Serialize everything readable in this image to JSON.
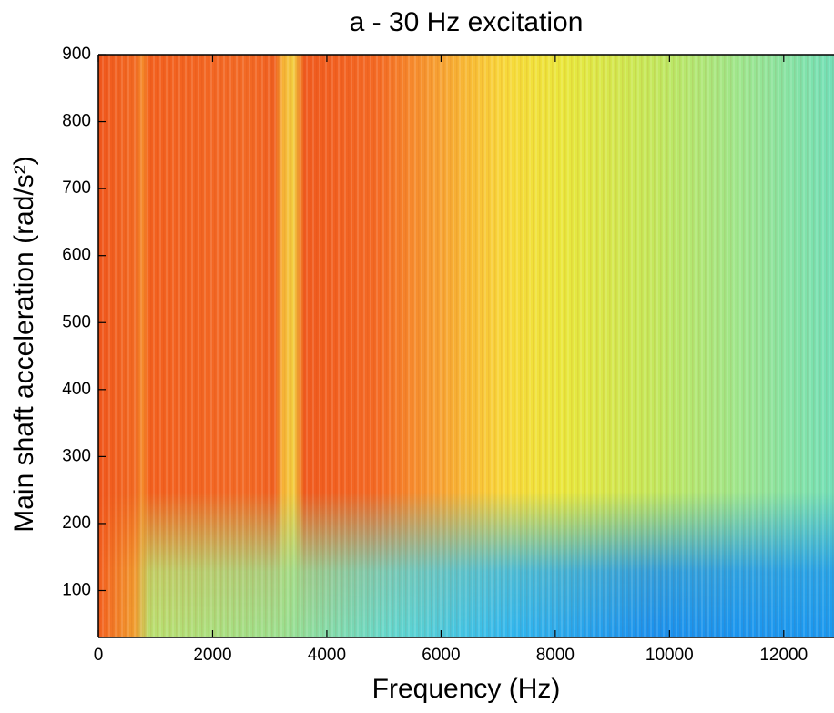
{
  "chart_data": {
    "type": "heatmap",
    "title": "a - 30 Hz excitation",
    "xlabel": "Frequency (Hz)",
    "ylabel": "Main shaft acceleration (rad/s²)",
    "xlim": [
      0,
      12880
    ],
    "ylim": [
      30,
      900
    ],
    "xticks": [
      0,
      2000,
      4000,
      6000,
      8000,
      10000,
      12000
    ],
    "yticks": [
      100,
      200,
      300,
      400,
      500,
      600,
      700,
      800,
      900
    ]
  }
}
